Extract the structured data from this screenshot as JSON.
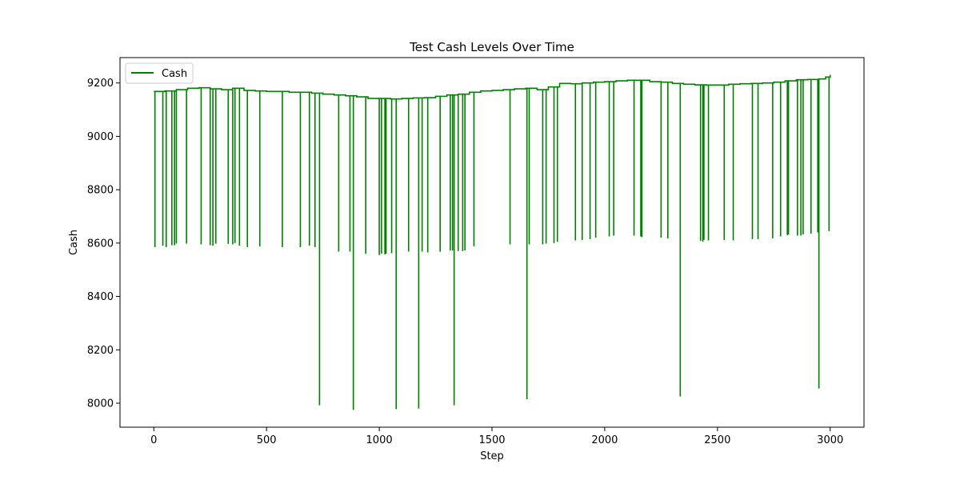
{
  "chart_data": {
    "type": "line",
    "title": "Test Cash Levels Over Time",
    "xlabel": "Step",
    "ylabel": "Cash",
    "xlim": [
      -150,
      3150
    ],
    "ylim": [
      7910,
      9295
    ],
    "xticks": [
      0,
      500,
      1000,
      1500,
      2000,
      2500,
      3000
    ],
    "yticks": [
      8000,
      8200,
      8400,
      8600,
      8800,
      9000,
      9200
    ],
    "grid": false,
    "legend": {
      "position": "top-left",
      "entries": [
        "Cash"
      ]
    },
    "series": [
      {
        "name": "Cash",
        "color": "#008000",
        "baseline": [
          [
            0,
            9168
          ],
          [
            50,
            9170
          ],
          [
            100,
            9175
          ],
          [
            150,
            9180
          ],
          [
            200,
            9182
          ],
          [
            250,
            9178
          ],
          [
            300,
            9175
          ],
          [
            350,
            9180
          ],
          [
            400,
            9172
          ],
          [
            450,
            9170
          ],
          [
            500,
            9168
          ],
          [
            550,
            9168
          ],
          [
            600,
            9165
          ],
          [
            650,
            9165
          ],
          [
            700,
            9162
          ],
          [
            750,
            9158
          ],
          [
            800,
            9155
          ],
          [
            850,
            9152
          ],
          [
            900,
            9148
          ],
          [
            950,
            9142
          ],
          [
            1000,
            9142
          ],
          [
            1050,
            9140
          ],
          [
            1100,
            9142
          ],
          [
            1150,
            9144
          ],
          [
            1200,
            9145
          ],
          [
            1250,
            9150
          ],
          [
            1300,
            9155
          ],
          [
            1350,
            9158
          ],
          [
            1400,
            9165
          ],
          [
            1450,
            9170
          ],
          [
            1500,
            9172
          ],
          [
            1550,
            9175
          ],
          [
            1600,
            9178
          ],
          [
            1650,
            9180
          ],
          [
            1700,
            9175
          ],
          [
            1750,
            9185
          ],
          [
            1800,
            9198
          ],
          [
            1850,
            9197
          ],
          [
            1900,
            9200
          ],
          [
            1950,
            9203
          ],
          [
            2000,
            9205
          ],
          [
            2050,
            9208
          ],
          [
            2100,
            9210
          ],
          [
            2150,
            9210
          ],
          [
            2200,
            9205
          ],
          [
            2250,
            9203
          ],
          [
            2300,
            9198
          ],
          [
            2350,
            9195
          ],
          [
            2400,
            9193
          ],
          [
            2450,
            9192
          ],
          [
            2500,
            9192
          ],
          [
            2550,
            9195
          ],
          [
            2600,
            9197
          ],
          [
            2650,
            9198
          ],
          [
            2700,
            9200
          ],
          [
            2750,
            9203
          ],
          [
            2800,
            9208
          ],
          [
            2850,
            9212
          ],
          [
            2900,
            9213
          ],
          [
            2950,
            9215
          ],
          [
            2980,
            9222
          ],
          [
            3000,
            9230
          ]
        ],
        "dips": [
          [
            5,
            8585
          ],
          [
            40,
            8590
          ],
          [
            55,
            8585
          ],
          [
            80,
            8592
          ],
          [
            92,
            8592
          ],
          [
            100,
            8598
          ],
          [
            145,
            8598
          ],
          [
            210,
            8595
          ],
          [
            250,
            8592
          ],
          [
            262,
            8590
          ],
          [
            275,
            8598
          ],
          [
            330,
            8597
          ],
          [
            350,
            8595
          ],
          [
            360,
            8600
          ],
          [
            380,
            8590
          ],
          [
            415,
            8585
          ],
          [
            470,
            8588
          ],
          [
            570,
            8585
          ],
          [
            650,
            8585
          ],
          [
            690,
            8590
          ],
          [
            715,
            8585
          ],
          [
            735,
            7992
          ],
          [
            820,
            8568
          ],
          [
            870,
            8568
          ],
          [
            885,
            7975
          ],
          [
            940,
            8560
          ],
          [
            1000,
            8555
          ],
          [
            1010,
            8560
          ],
          [
            1025,
            8558
          ],
          [
            1030,
            8560
          ],
          [
            1055,
            8562
          ],
          [
            1075,
            7978
          ],
          [
            1130,
            8568
          ],
          [
            1175,
            7980
          ],
          [
            1190,
            8568
          ],
          [
            1215,
            8565
          ],
          [
            1270,
            8568
          ],
          [
            1315,
            8572
          ],
          [
            1325,
            8572
          ],
          [
            1332,
            7992
          ],
          [
            1350,
            8570
          ],
          [
            1370,
            8570
          ],
          [
            1380,
            8572
          ],
          [
            1420,
            8588
          ],
          [
            1580,
            8595
          ],
          [
            1655,
            8015
          ],
          [
            1665,
            8595
          ],
          [
            1725,
            8595
          ],
          [
            1740,
            8598
          ],
          [
            1775,
            8600
          ],
          [
            1790,
            8605
          ],
          [
            1870,
            8610
          ],
          [
            1900,
            8612
          ],
          [
            1935,
            8615
          ],
          [
            1960,
            8620
          ],
          [
            2020,
            8625
          ],
          [
            2040,
            8628
          ],
          [
            2130,
            8628
          ],
          [
            2160,
            8625
          ],
          [
            2165,
            8622
          ],
          [
            2250,
            8620
          ],
          [
            2280,
            8618
          ],
          [
            2335,
            8025
          ],
          [
            2425,
            8608
          ],
          [
            2435,
            8605
          ],
          [
            2440,
            8612
          ],
          [
            2460,
            8610
          ],
          [
            2530,
            8612
          ],
          [
            2570,
            8610
          ],
          [
            2655,
            8615
          ],
          [
            2680,
            8615
          ],
          [
            2745,
            8618
          ],
          [
            2780,
            8625
          ],
          [
            2810,
            8630
          ],
          [
            2815,
            8632
          ],
          [
            2855,
            8628
          ],
          [
            2870,
            8628
          ],
          [
            2880,
            8632
          ],
          [
            2915,
            8635
          ],
          [
            2945,
            8640
          ],
          [
            2950,
            8055
          ],
          [
            2995,
            8645
          ]
        ]
      }
    ]
  }
}
